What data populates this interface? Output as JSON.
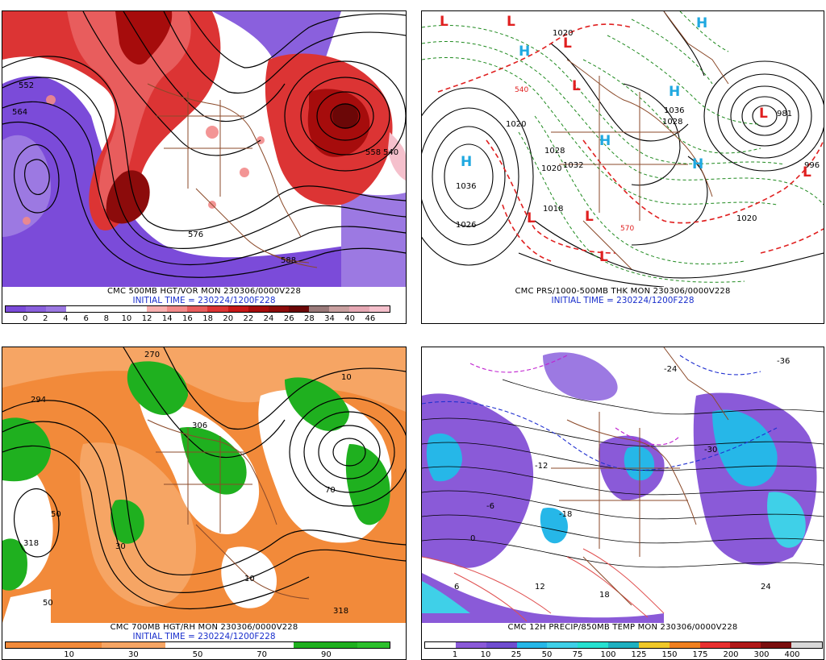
{
  "panels": [
    {
      "caption": "CMC 500MB HGT/VOR MON 230306/0000V228",
      "init": "INITIAL TIME = 230224/1200F228",
      "scale_colors": [
        "#7b4bd9",
        "#8a60dd",
        "#9c79e2",
        "#ffffff",
        "#ffffff",
        "#ffffff",
        "#ffffff",
        "#f8b0b0",
        "#f28a8a",
        "#e85d5d",
        "#dc3434",
        "#c71818",
        "#a60c0c",
        "#8c0b0b",
        "#6b0707",
        "#9a7a7a",
        "#c9a0a0",
        "#e6a8b4",
        "#f5c0cc"
      ],
      "ticks": [
        "0",
        "2",
        "4",
        "6",
        "8",
        "10",
        "12",
        "14",
        "16",
        "18",
        "20",
        "22",
        "24",
        "26",
        "28",
        "34",
        "40",
        "46"
      ],
      "labels": [
        "552",
        "564",
        "576",
        "588",
        "540",
        "558"
      ]
    },
    {
      "caption": "CMC PRS/1000-500MB THK MON 230306/0000V228",
      "init": "INITIAL TIME = 230224/1200F228",
      "labels": [
        "1020",
        "1036",
        "1026",
        "1028",
        "1020",
        "1036",
        "1028",
        "1020",
        "1018",
        "1032",
        "1020",
        "570",
        "540",
        "981",
        "996"
      ],
      "highs": [
        "H",
        "H",
        "H",
        "H",
        "H",
        "H"
      ],
      "lows": [
        "L",
        "L",
        "L",
        "L",
        "L",
        "L",
        "L",
        "L",
        "L"
      ]
    },
    {
      "caption": "CMC 700MB HGT/RH MON 230306/0000V228",
      "init": "INITIAL TIME = 230224/1200F228",
      "scale_colors": [
        "#f28a3a",
        "#f28a3a",
        "#f28a3a",
        "#f6a564",
        "#f6a564",
        "#ffffff",
        "#ffffff",
        "#ffffff",
        "#ffffff",
        "#1fb01f",
        "#1fb01f",
        "#2cc02c"
      ],
      "ticks": [
        "10",
        "30",
        "50",
        "70",
        "90"
      ],
      "labels": [
        "294",
        "318",
        "270",
        "306",
        "318",
        "10",
        "10",
        "50",
        "50",
        "70",
        "30"
      ]
    },
    {
      "caption": "CMC 12H PRECIP/850MB TEMP MON 230306/0000V228",
      "scale_colors": [
        "#ffffff",
        "#8a5ad8",
        "#6f4dd0",
        "#26b7e8",
        "#3fd0e8",
        "#26e0d0",
        "#1fb0c0",
        "#f0c828",
        "#f08020",
        "#e83030",
        "#b01818",
        "#7a0e0e",
        "#d8d8d8"
      ],
      "ticks": [
        "1",
        "10",
        "25",
        "50",
        "75",
        "100",
        "125",
        "150",
        "175",
        "200",
        "300",
        "400"
      ],
      "labels": [
        "-24",
        "-30",
        "-18",
        "-12",
        "-6",
        "0",
        "6",
        "12",
        "18",
        "24",
        "-36"
      ]
    }
  ]
}
